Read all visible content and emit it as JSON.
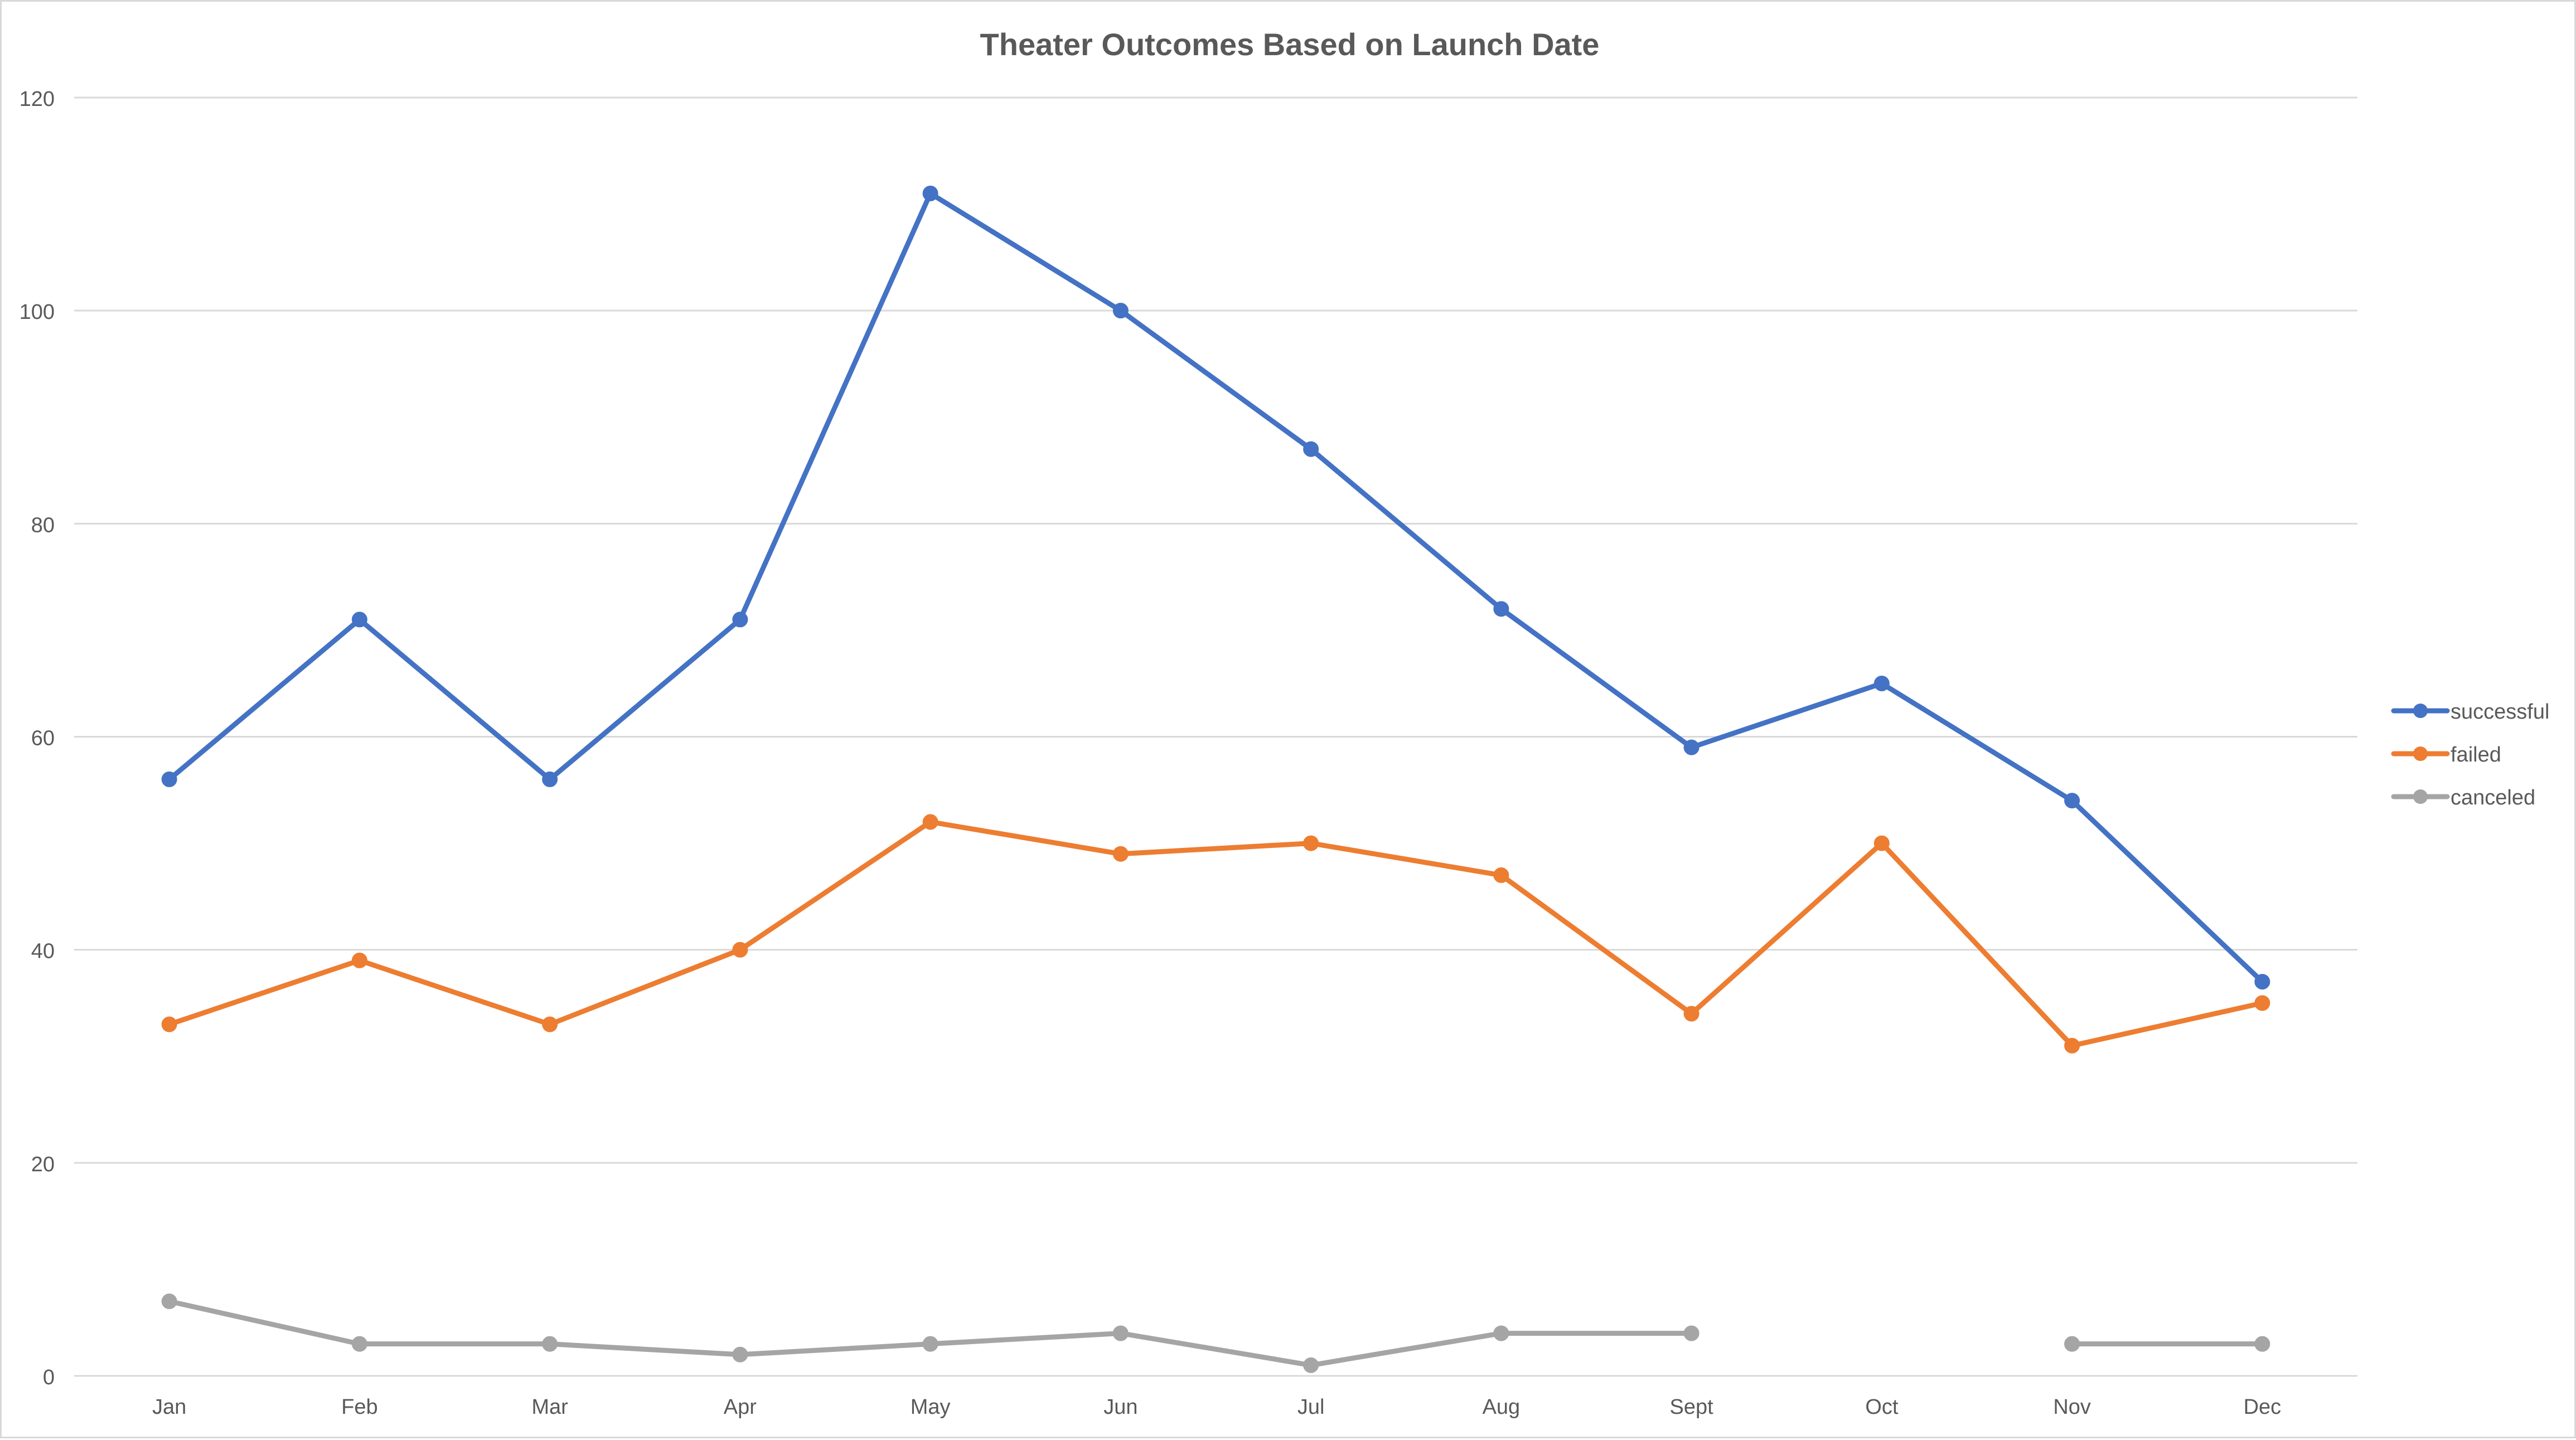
{
  "chart_data": {
    "type": "line",
    "title": "Theater Outcomes Based on Launch Date",
    "xlabel": "",
    "ylabel": "",
    "categories": [
      "Jan",
      "Feb",
      "Mar",
      "Apr",
      "May",
      "Jun",
      "Jul",
      "Aug",
      "Sept",
      "Oct",
      "Nov",
      "Dec"
    ],
    "ylim": [
      0,
      120
    ],
    "yticks": [
      0,
      20,
      40,
      60,
      80,
      100,
      120
    ],
    "grid": true,
    "legend_position": "right",
    "series": [
      {
        "name": "successful",
        "color": "#4472c4",
        "values": [
          56,
          71,
          56,
          71,
          111,
          100,
          87,
          72,
          59,
          65,
          54,
          37
        ]
      },
      {
        "name": "failed",
        "color": "#ed7d31",
        "values": [
          33,
          39,
          33,
          40,
          52,
          49,
          50,
          47,
          34,
          50,
          31,
          35
        ]
      },
      {
        "name": "canceled",
        "color": "#a5a5a5",
        "values": [
          7,
          3,
          3,
          2,
          3,
          4,
          1,
          4,
          4,
          null,
          3,
          3
        ]
      }
    ]
  }
}
